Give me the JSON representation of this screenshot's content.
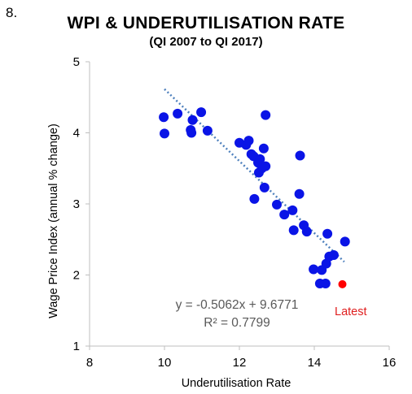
{
  "slide": {
    "number": "8."
  },
  "chart_data": {
    "type": "scatter",
    "title": "WPI & UNDERUTILISATION RATE",
    "subtitle": "(QI 2007 to QI 2017)",
    "xlabel": "Underutilisation Rate",
    "ylabel": "Wage Price Index (annual % change)",
    "xlim": [
      8,
      16
    ],
    "ylim": [
      1,
      5
    ],
    "xticks": [
      "8",
      "10",
      "12",
      "14",
      "16"
    ],
    "yticks": [
      "1",
      "2",
      "3",
      "4",
      "5"
    ],
    "grid": false,
    "series": [
      {
        "color": "#0a14e6",
        "points": [
          [
            9.98,
            4.22
          ],
          [
            10.0,
            3.99
          ],
          [
            10.35,
            4.27
          ],
          [
            10.7,
            4.04
          ],
          [
            10.72,
            4.0
          ],
          [
            10.75,
            4.18
          ],
          [
            10.98,
            4.29
          ],
          [
            11.15,
            4.03
          ],
          [
            12.0,
            3.86
          ],
          [
            12.18,
            3.83
          ],
          [
            12.25,
            3.89
          ],
          [
            12.32,
            3.7
          ],
          [
            12.38,
            3.67
          ],
          [
            12.4,
            3.07
          ],
          [
            12.5,
            3.58
          ],
          [
            12.52,
            3.44
          ],
          [
            12.55,
            3.63
          ],
          [
            12.6,
            3.5
          ],
          [
            12.65,
            3.78
          ],
          [
            12.67,
            3.23
          ],
          [
            12.7,
            3.53
          ],
          [
            12.7,
            4.25
          ],
          [
            13.0,
            2.99
          ],
          [
            13.2,
            2.85
          ],
          [
            13.42,
            2.91
          ],
          [
            13.45,
            2.63
          ],
          [
            13.6,
            3.14
          ],
          [
            13.62,
            3.68
          ],
          [
            13.72,
            2.7
          ],
          [
            13.8,
            2.61
          ],
          [
            13.98,
            2.08
          ],
          [
            14.15,
            1.88
          ],
          [
            14.2,
            2.07
          ],
          [
            14.3,
            1.88
          ],
          [
            14.32,
            2.16
          ],
          [
            14.35,
            2.58
          ],
          [
            14.4,
            2.26
          ],
          [
            14.52,
            2.28
          ],
          [
            14.82,
            2.47
          ]
        ]
      },
      {
        "color": "#ff0000",
        "points": [
          [
            14.75,
            1.87
          ]
        ]
      }
    ],
    "trendline": {
      "x": [
        10.0,
        14.8
      ],
      "color": "#4f81bd",
      "slope": -0.5062,
      "intercept": 9.6771
    },
    "annotations": {
      "equation": "y = -0.5062x + 9.6771",
      "r_squared": "R² = 0.7799",
      "latest": "Latest"
    }
  }
}
